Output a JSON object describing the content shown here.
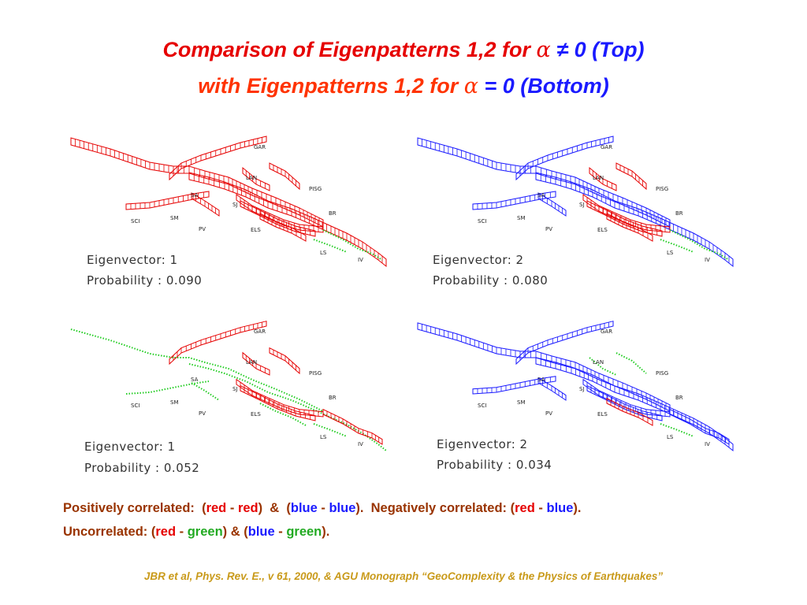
{
  "title": {
    "line1_a": "Comparison of Eigenpatterns 1,2  for ",
    "alpha": "α",
    "line1_b": " ≠ 0  (Top)",
    "line2_a": "with Eigenpatterns 1,2 for ",
    "line2_b": " =  0  (Bottom)"
  },
  "fault_labels": {
    "gar": "GAR",
    "lan": "LAN",
    "pisg": "PISG",
    "sa": "SA",
    "sj": "SJ",
    "br": "BR",
    "sci": "SCI",
    "sm": "SM",
    "pv": "PV",
    "els": "ELS",
    "ls": "LS",
    "iv": "IV"
  },
  "colors": {
    "positive": "#e60000",
    "negative": "#1a1aff",
    "uncorrelated": "#22cc22"
  },
  "panels": [
    {
      "id": "top-left",
      "eigenvector_text": "Eigenvector: 1",
      "probability_text": "Probability : 0.090",
      "colors": [
        "red",
        "red",
        "red",
        "red",
        "red",
        "red",
        "red",
        "red",
        "red",
        "red",
        "green",
        "green"
      ]
    },
    {
      "id": "top-right",
      "eigenvector_text": "Eigenvector: 2",
      "probability_text": "Probability : 0.080",
      "colors": [
        "blue",
        "blue",
        "blue",
        "red",
        "red",
        "blue",
        "red",
        "red",
        "blue",
        "red",
        "green",
        "green"
      ]
    },
    {
      "id": "bottom-left",
      "eigenvector_text": "Eigenvector: 1",
      "probability_text": "Probability : 0.052",
      "colors": [
        "green",
        "red",
        "green",
        "red",
        "red",
        "green",
        "red",
        "red",
        "green",
        "green",
        "green",
        "red"
      ]
    },
    {
      "id": "bottom-right",
      "eigenvector_text": "Eigenvector: 2",
      "probability_text": "Probability : 0.034",
      "colors": [
        "blue",
        "blue",
        "blue",
        "green",
        "green",
        "blue",
        "blue",
        "blue",
        "blue",
        "red",
        "green",
        "blue"
      ]
    }
  ],
  "legend": {
    "line1": [
      {
        "t": "Positively correlated:  (",
        "c": ""
      },
      {
        "t": "red",
        "c": "red"
      },
      {
        "t": " - ",
        "c": ""
      },
      {
        "t": "red",
        "c": "red"
      },
      {
        "t": ")  &  (",
        "c": ""
      },
      {
        "t": "blue",
        "c": "blue"
      },
      {
        "t": " - ",
        "c": ""
      },
      {
        "t": "blue",
        "c": "blue"
      },
      {
        "t": ").  Negatively correlated: (",
        "c": ""
      },
      {
        "t": "red",
        "c": "red"
      },
      {
        "t": " - ",
        "c": ""
      },
      {
        "t": "blue",
        "c": "blue"
      },
      {
        "t": ").",
        "c": ""
      }
    ],
    "line2": [
      {
        "t": "Uncorrelated: (",
        "c": ""
      },
      {
        "t": "red",
        "c": "red"
      },
      {
        "t": " - ",
        "c": ""
      },
      {
        "t": "green",
        "c": "green"
      },
      {
        "t": ") & (",
        "c": ""
      },
      {
        "t": "blue",
        "c": "blue"
      },
      {
        "t": " - ",
        "c": ""
      },
      {
        "t": "green",
        "c": "green"
      },
      {
        "t": ").",
        "c": ""
      }
    ]
  },
  "citation": "JBR et al, Phys. Rev. E., v 61, 2000,  & AGU Monograph “GeoComplexity & the Physics of Earthquakes”"
}
